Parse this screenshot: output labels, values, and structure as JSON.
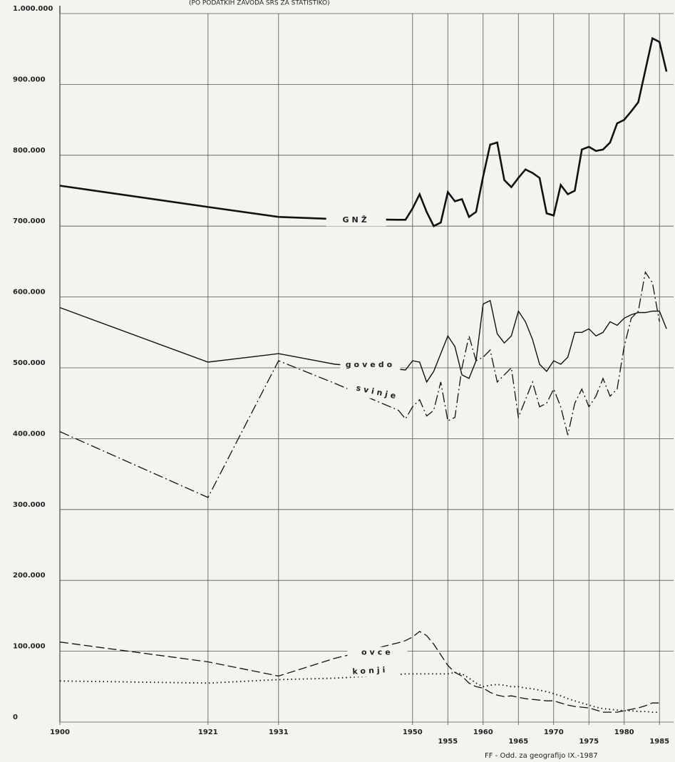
{
  "chart_data": {
    "type": "line",
    "subtitle": "(PO PODATKIH ZAVODA SRS ZA STATISTIKO)",
    "annotation": "FF - Odd. za geografijo IX.-1987",
    "x": [
      1900,
      1921,
      1931,
      1939,
      1948,
      1949,
      1950,
      1951,
      1952,
      1953,
      1954,
      1955,
      1956,
      1957,
      1958,
      1959,
      1960,
      1961,
      1962,
      1963,
      1964,
      1965,
      1966,
      1967,
      1968,
      1969,
      1970,
      1971,
      1972,
      1973,
      1974,
      1975,
      1976,
      1977,
      1978,
      1979,
      1980,
      1981,
      1982,
      1983,
      1984,
      1985,
      1986
    ],
    "series": [
      {
        "name": "GNŽ",
        "color": "#111111",
        "style": "solid-bold",
        "values": [
          757000,
          727000,
          713000,
          710000,
          709000,
          709000,
          725000,
          745000,
          720000,
          700000,
          705000,
          748000,
          735000,
          738000,
          713000,
          720000,
          770000,
          815000,
          818000,
          765000,
          755000,
          768000,
          780000,
          775000,
          768000,
          718000,
          715000,
          758000,
          745000,
          750000,
          808000,
          812000,
          806000,
          808000,
          818000,
          845000,
          850000,
          862000,
          875000,
          920000,
          965000,
          960000,
          918000
        ]
      },
      {
        "name": "govedo",
        "color": "#111111",
        "style": "solid",
        "values": [
          585000,
          508000,
          520000,
          505000,
          498000,
          497000,
          510000,
          508000,
          480000,
          495000,
          520000,
          545000,
          530000,
          490000,
          485000,
          510000,
          590000,
          595000,
          548000,
          535000,
          545000,
          580000,
          565000,
          540000,
          505000,
          495000,
          510000,
          505000,
          515000,
          550000,
          550000,
          555000,
          545000,
          550000,
          565000,
          560000,
          570000,
          575000,
          578000,
          578000,
          580000,
          580000,
          555000
        ]
      },
      {
        "name": "svinje",
        "color": "#111111",
        "style": "dash-dot",
        "values": [
          410000,
          317000,
          510000,
          478000,
          440000,
          428000,
          445000,
          455000,
          432000,
          440000,
          480000,
          425000,
          430000,
          500000,
          545000,
          510000,
          515000,
          525000,
          480000,
          490000,
          500000,
          430000,
          455000,
          480000,
          445000,
          450000,
          470000,
          445000,
          405000,
          450000,
          470000,
          445000,
          460000,
          485000,
          460000,
          470000,
          530000,
          570000,
          580000,
          635000,
          620000,
          565000,
          null
        ]
      },
      {
        "name": "ovce",
        "color": "#111111",
        "style": "dashed",
        "values": [
          113000,
          85000,
          65000,
          90000,
          112000,
          115000,
          120000,
          128000,
          122000,
          110000,
          95000,
          80000,
          70000,
          65000,
          55000,
          50000,
          48000,
          42000,
          38000,
          36000,
          37000,
          35000,
          33000,
          32000,
          31000,
          30000,
          30000,
          27000,
          24000,
          22000,
          21000,
          20000,
          17000,
          14000,
          14000,
          14000,
          16000,
          18000,
          20000,
          23000,
          27000,
          27000,
          null
        ]
      },
      {
        "name": "konji",
        "color": "#111111",
        "style": "dotted",
        "values": [
          58000,
          55000,
          60000,
          62000,
          67000,
          68000,
          68000,
          68000,
          68000,
          68000,
          68000,
          68000,
          70000,
          68000,
          62000,
          55000,
          50000,
          52000,
          53000,
          52000,
          50000,
          50000,
          48000,
          47000,
          45000,
          43000,
          40000,
          37000,
          33000,
          30000,
          27000,
          24000,
          21000,
          19000,
          18000,
          17000,
          16000,
          16000,
          15000,
          15000,
          14000,
          14000,
          null
        ]
      }
    ],
    "xlim": [
      1900,
      1987
    ],
    "xticks": [
      1900,
      1921,
      1931,
      1950,
      1955,
      1960,
      1965,
      1970,
      1975,
      1980,
      1985
    ],
    "ylim": [
      0,
      1000000
    ],
    "yticks": [
      0,
      {
        "value": 100000,
        "label": "100.000"
      },
      {
        "value": 200000,
        "label": "200.000"
      },
      {
        "value": 300000,
        "label": "300.000"
      },
      {
        "value": 400000,
        "label": "400.000"
      },
      {
        "value": 500000,
        "label": "500.000"
      },
      {
        "value": 600000,
        "label": "600.000"
      },
      {
        "value": 700000,
        "label": "700.000"
      },
      {
        "value": 800000,
        "label": "800.000"
      },
      {
        "value": 900000,
        "label": "900.000"
      },
      {
        "value": 1000000,
        "label": "1.000.000"
      }
    ],
    "grid": true
  }
}
